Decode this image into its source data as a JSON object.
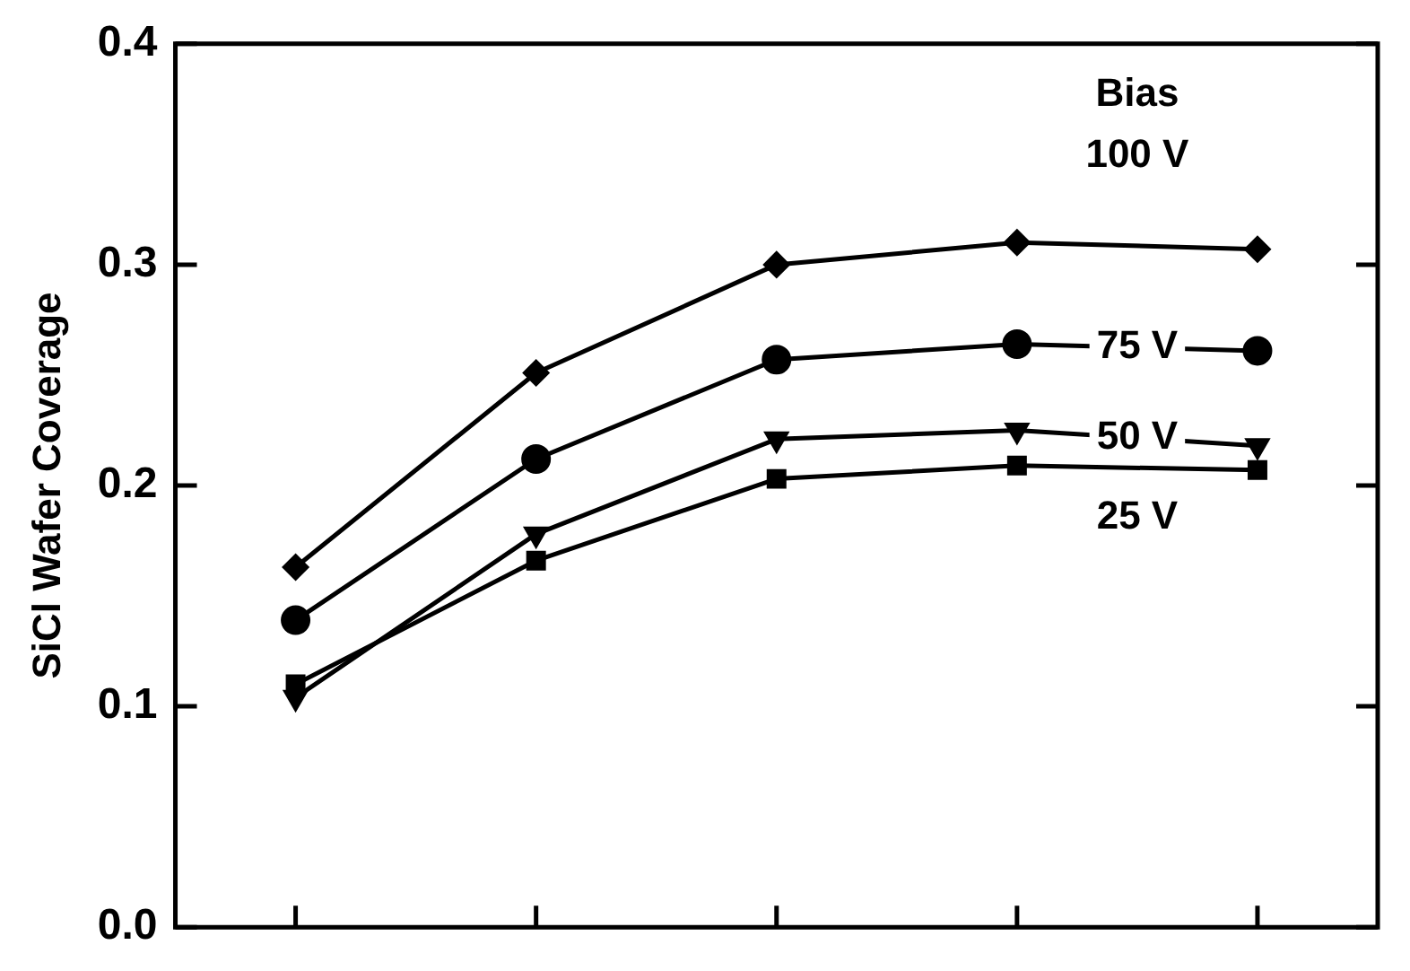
{
  "chart_data": {
    "type": "line",
    "ylabel": "SiCl Wafer Coverage",
    "legend_title": "Bias",
    "categories": [
      null,
      null,
      null,
      null,
      null
    ],
    "ylim": [
      0,
      0.4
    ],
    "yticks": [
      {
        "value": 0,
        "label": "0.0"
      },
      {
        "value": 0.1,
        "label": "0.1"
      },
      {
        "value": 0.2,
        "label": "0.2"
      },
      {
        "value": 0.3,
        "label": "0.3"
      },
      {
        "value": 0.4,
        "label": "0.4"
      }
    ],
    "tick_labels": "y",
    "grid": false,
    "legend": false,
    "line_style": "solid",
    "series": [
      {
        "name": "100 V",
        "color": "#000000",
        "marker": "diamond",
        "values": [
          0.163,
          0.251,
          0.3,
          0.31,
          0.307
        ]
      },
      {
        "name": "75 V",
        "color": "#000000",
        "marker": "circle",
        "values": [
          0.139,
          0.212,
          0.257,
          0.264,
          0.261
        ]
      },
      {
        "name": "50 V",
        "color": "#000000",
        "marker": "triangle",
        "values": [
          0.104,
          0.178,
          0.221,
          0.225,
          0.218
        ]
      },
      {
        "name": "25 V",
        "color": "#000000",
        "marker": "square",
        "values": [
          0.11,
          0.166,
          0.203,
          0.209,
          0.207
        ]
      }
    ]
  }
}
